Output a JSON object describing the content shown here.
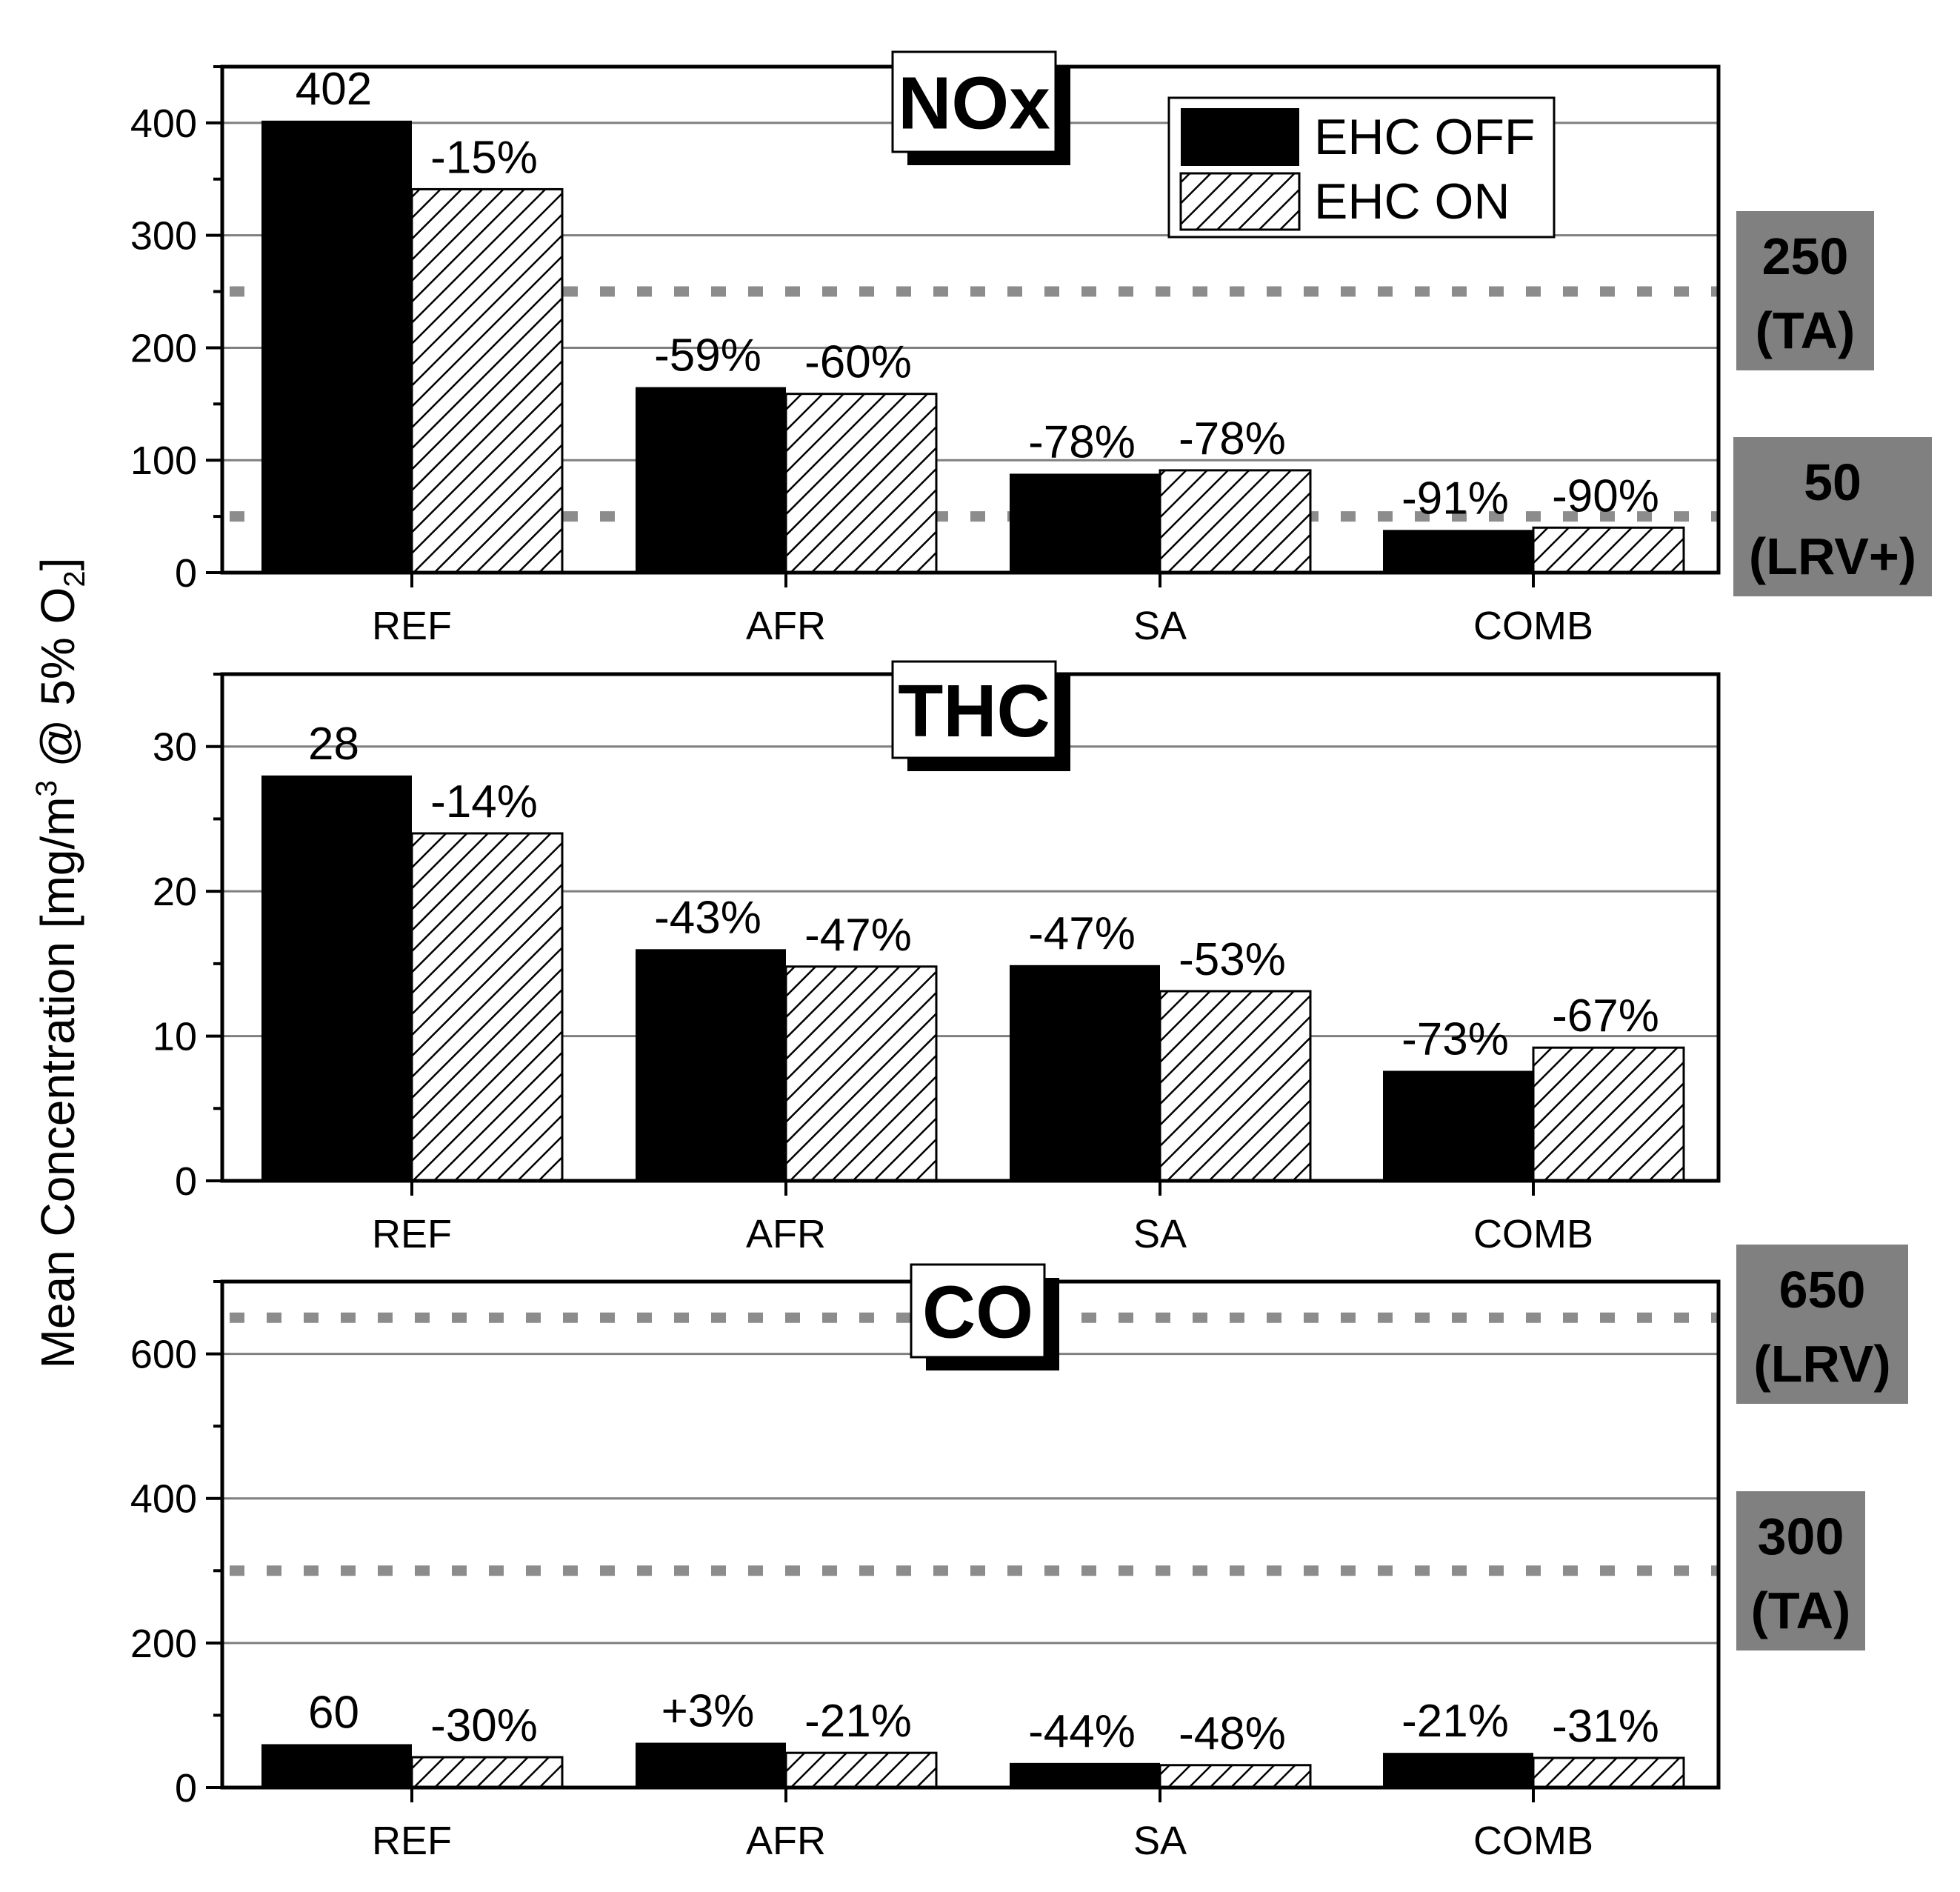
{
  "chart_data": {
    "type": "bar",
    "ylabel": "Mean Concentration [mg/m³ @ 5% O₂]",
    "ylabel_parts": {
      "main": "Mean Concentration [mg/m",
      "sup": "3",
      "mid": " @ 5% O",
      "sub": "2",
      "end": "]"
    },
    "categories": [
      "REF",
      "AFR",
      "SA",
      "COMB"
    ],
    "legend": [
      {
        "name": "EHC OFF",
        "style": "solid-black"
      },
      {
        "name": "EHC ON",
        "style": "hatched"
      }
    ],
    "legend_position": "top-right of first panel",
    "colors": {
      "bar_off": "#000000",
      "hatch": "#000000",
      "grid": "#7f7f7f",
      "ref_line": "#8c8c8c",
      "ref_box": "#808080"
    },
    "panels": [
      {
        "id": "nox",
        "title": "NOx",
        "ylim": [
          0,
          450
        ],
        "yticks": [
          0,
          100,
          200,
          300,
          400
        ],
        "series": [
          {
            "name": "EHC OFF",
            "values": [
              402,
              165,
              88,
              38
            ]
          },
          {
            "name": "EHC ON",
            "values": [
              341,
              159,
              91,
              40
            ]
          }
        ],
        "labels": [
          [
            "402",
            "-15%"
          ],
          [
            "-59%",
            "-60%"
          ],
          [
            "-78%",
            "-78%"
          ],
          [
            "-91%",
            "-90%"
          ]
        ],
        "reference_lines": [
          {
            "value": 250,
            "label_value": "250",
            "label_name": "(TA)"
          },
          {
            "value": 50,
            "label_value": "50",
            "label_name": "(LRV+)"
          }
        ]
      },
      {
        "id": "thc",
        "title": "THC",
        "ylim": [
          0,
          35
        ],
        "yticks": [
          0,
          10,
          20,
          30
        ],
        "series": [
          {
            "name": "EHC OFF",
            "values": [
              28,
              16,
              14.9,
              7.6
            ]
          },
          {
            "name": "EHC ON",
            "values": [
              24,
              14.8,
              13.1,
              9.2
            ]
          }
        ],
        "labels": [
          [
            "28",
            "-14%"
          ],
          [
            "-43%",
            "-47%"
          ],
          [
            "-47%",
            "-53%"
          ],
          [
            "-73%",
            "-67%"
          ]
        ],
        "reference_lines": []
      },
      {
        "id": "co",
        "title": "CO",
        "ylim": [
          0,
          700
        ],
        "yticks": [
          0,
          200,
          400,
          600
        ],
        "series": [
          {
            "name": "EHC OFF",
            "values": [
              60,
              62,
              34,
              48
            ]
          },
          {
            "name": "EHC ON",
            "values": [
              42,
              48,
              31,
              41
            ]
          }
        ],
        "labels": [
          [
            "60",
            "-30%"
          ],
          [
            "+3%",
            "-21%"
          ],
          [
            "-44%",
            "-48%"
          ],
          [
            "-21%",
            "-31%"
          ]
        ],
        "reference_lines": [
          {
            "value": 650,
            "label_value": "650",
            "label_name": "(LRV)"
          },
          {
            "value": 300,
            "label_value": "300",
            "label_name": "(TA)"
          }
        ]
      }
    ]
  }
}
